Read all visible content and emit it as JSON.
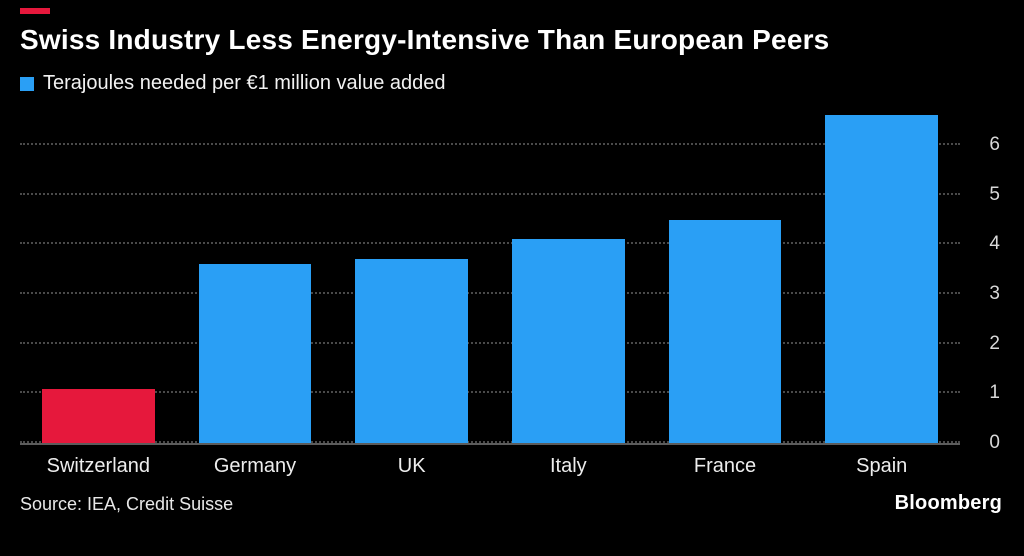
{
  "accent_color": "#e6183c",
  "title": "Swiss Industry Less Energy-Intensive Than European Peers",
  "legend": {
    "label": "Terajoules needed per €1 million value added",
    "swatch_color": "#2a9ff5"
  },
  "source": "Source: IEA, Credit Suisse",
  "logo": "Bloomberg",
  "chart_data": {
    "type": "bar",
    "title": "Swiss Industry Less Energy-Intensive Than European Peers",
    "legend_label": "Terajoules needed per €1 million value added",
    "categories": [
      "Switzerland",
      "Germany",
      "UK",
      "Italy",
      "France",
      "Spain"
    ],
    "values": [
      1.1,
      3.6,
      3.7,
      4.1,
      4.5,
      6.6
    ],
    "bar_colors": [
      "#e6183c",
      "#2a9ff5",
      "#2a9ff5",
      "#2a9ff5",
      "#2a9ff5",
      "#2a9ff5"
    ],
    "xlabel": "",
    "ylabel": "",
    "ylim": [
      0,
      6.8
    ],
    "yticks": [
      0,
      1,
      2,
      3,
      4,
      5,
      6
    ],
    "grid": "dotted-horizontal",
    "tick_side": "right",
    "legend_position": "top-left",
    "highlight_category": "Switzerland"
  }
}
